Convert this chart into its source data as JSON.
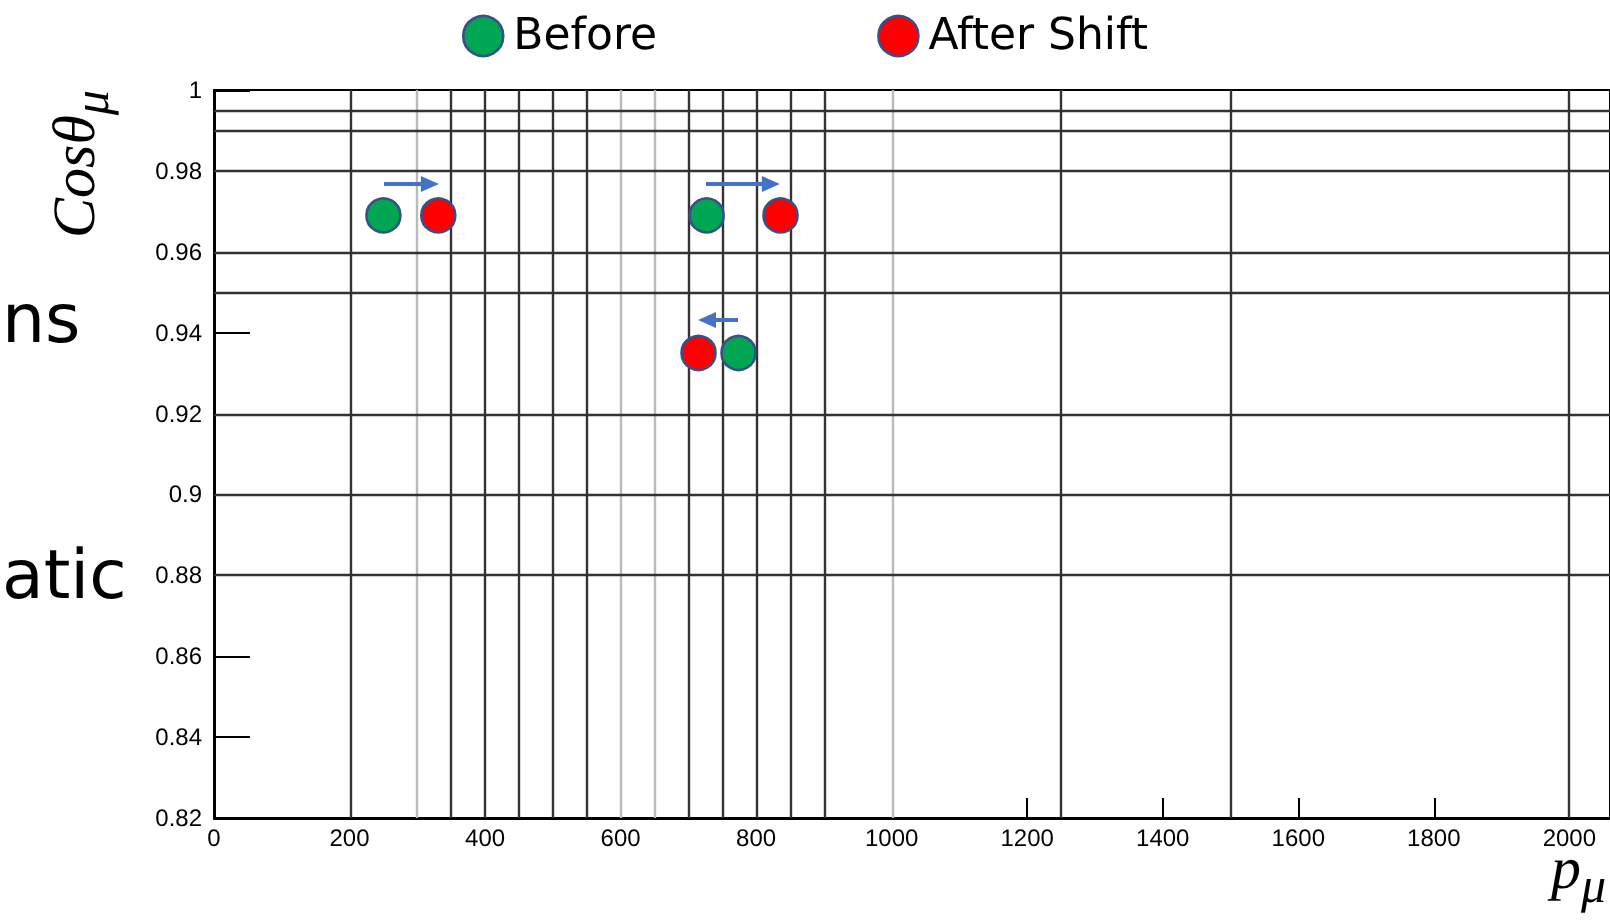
{
  "chart_data": {
    "type": "scatter",
    "xlabel": "p$_{μ}$",
    "ylabel": "Cosθ$_{μ}$",
    "annotations": [
      "ns",
      "atic"
    ],
    "series": [
      {
        "name": "Before",
        "color": "#00a651",
        "x": [
          250,
          727,
          774
        ],
        "values": [
          0.969,
          0.969,
          0.935
        ]
      },
      {
        "name": "After Shift",
        "color": "#ff0000",
        "x": [
          331,
          836,
          715
        ],
        "values": [
          0.969,
          0.969,
          0.935
        ]
      }
    ],
    "xlim": [
      0,
      2060
    ],
    "xticks": [
      0,
      200,
      400,
      600,
      800,
      1000,
      1200,
      1400,
      1600,
      1800,
      2000
    ],
    "ylim": [
      0.82,
      1
    ],
    "yticks": [
      0.82,
      0.84,
      0.86,
      0.88,
      0.9,
      0.92,
      0.94,
      0.96,
      0.98,
      1
    ],
    "ref_lines": [
      {
        "axis": "x",
        "value": 200,
        "color": "#333333"
      },
      {
        "axis": "x",
        "value": 300,
        "color": "#bbbbbb"
      },
      {
        "axis": "x",
        "value": 350,
        "color": "#333333"
      },
      {
        "axis": "x",
        "value": 400,
        "color": "#333333"
      },
      {
        "axis": "x",
        "value": 450,
        "color": "#333333"
      },
      {
        "axis": "x",
        "value": 500,
        "color": "#333333"
      },
      {
        "axis": "x",
        "value": 550,
        "color": "#333333"
      },
      {
        "axis": "x",
        "value": 600,
        "color": "#bbbbbb"
      },
      {
        "axis": "x",
        "value": 650,
        "color": "#bbbbbb"
      },
      {
        "axis": "x",
        "value": 700,
        "color": "#333333"
      },
      {
        "axis": "x",
        "value": 750,
        "color": "#333333"
      },
      {
        "axis": "x",
        "value": 800,
        "color": "#333333"
      },
      {
        "axis": "x",
        "value": 850,
        "color": "#333333"
      },
      {
        "axis": "x",
        "value": 900,
        "color": "#333333"
      },
      {
        "axis": "x",
        "value": 1000,
        "color": "#bbbbbb"
      },
      {
        "axis": "x",
        "value": 1250,
        "color": "#333333"
      },
      {
        "axis": "x",
        "value": 1500,
        "color": "#333333"
      },
      {
        "axis": "x",
        "value": 2000,
        "color": "#333333"
      },
      {
        "axis": "y",
        "value": 0.995,
        "color": "#333333"
      },
      {
        "axis": "y",
        "value": 0.99,
        "color": "#333333"
      },
      {
        "axis": "y",
        "value": 0.98,
        "color": "#333333"
      },
      {
        "axis": "y",
        "value": 0.96,
        "color": "#333333"
      },
      {
        "axis": "y",
        "value": 0.95,
        "color": "#333333"
      },
      {
        "axis": "y",
        "value": 0.92,
        "color": "#333333"
      },
      {
        "axis": "y",
        "value": 0.9,
        "color": "#333333"
      },
      {
        "axis": "y",
        "value": 0.88,
        "color": "#333333"
      }
    ],
    "legend": "top",
    "marker": "circle",
    "grid": false
  }
}
